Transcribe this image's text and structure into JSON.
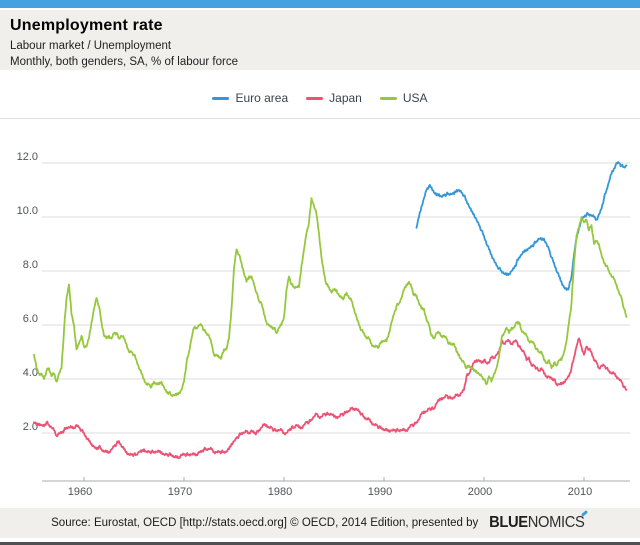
{
  "header": {
    "title": "Unemployment rate",
    "breadcrumb": "Labour market / Unemployment",
    "subtitle": "Monthly, both genders, SA, % of labour force"
  },
  "footer": {
    "source_text": "Source: Eurostat, OECD [http://stats.oecd.org] © OECD, 2014 Edition, presented by",
    "logo_bold": "BLUE",
    "logo_light": "NOMICS"
  },
  "colors": {
    "accent_bar": "#44a3de",
    "panel_bg": "#f0efec",
    "gridline": "#dcdcdc",
    "axis": "#aaacae",
    "tick_text": "#4e5459",
    "euro_area": "#3397d7",
    "japan": "#ec5273",
    "usa": "#96c83e"
  },
  "chart_data": {
    "type": "line",
    "title": "Unemployment rate",
    "xlabel": "",
    "ylabel": "% of labour force",
    "xlim": [
      1955.0,
      2014.25
    ],
    "ylim": [
      0.2,
      13.7
    ],
    "grid": true,
    "legend_position": "top-center",
    "x_ticks": [
      1960,
      1970,
      1980,
      1990,
      2000,
      2010
    ],
    "y_ticks": [
      2,
      4,
      6,
      8,
      10,
      12
    ],
    "y_tick_labels": [
      "2.0",
      "4.0",
      "6.0",
      "8.0",
      "10.0",
      "12.0"
    ],
    "x_unit": "year (monthly data)",
    "series": [
      {
        "name": "Euro area",
        "color": "#3397d7",
        "x_start": 1993.25,
        "x_step": 0.25,
        "values": [
          9.6,
          10.0,
          10.4,
          10.7,
          11.0,
          11.15,
          11.1,
          10.9,
          10.8,
          10.85,
          10.75,
          10.8,
          10.85,
          10.85,
          10.85,
          10.85,
          11.0,
          11.0,
          10.9,
          10.8,
          10.6,
          10.4,
          10.2,
          10.1,
          9.9,
          9.7,
          9.5,
          9.3,
          9.0,
          8.8,
          8.6,
          8.4,
          8.2,
          8.1,
          8.0,
          7.9,
          7.85,
          7.9,
          8.0,
          8.1,
          8.3,
          8.5,
          8.6,
          8.7,
          8.8,
          8.85,
          8.9,
          9.0,
          9.1,
          9.2,
          9.15,
          9.2,
          9.0,
          8.8,
          8.5,
          8.3,
          8.0,
          7.8,
          7.6,
          7.4,
          7.3,
          7.4,
          7.8,
          8.6,
          9.2,
          9.6,
          9.9,
          10.0,
          10.1,
          10.1,
          10.05,
          10.0,
          9.9,
          10.1,
          10.3,
          10.7,
          11.0,
          11.3,
          11.6,
          11.8,
          12.0,
          12.0,
          11.9,
          11.85,
          11.9
        ]
      },
      {
        "name": "Japan",
        "color": "#ec5273",
        "x_start": 1955.0,
        "x_step": 0.25,
        "values": [
          2.4,
          2.3,
          2.35,
          2.3,
          2.25,
          2.4,
          2.3,
          2.2,
          2.1,
          1.9,
          2.0,
          2.0,
          2.1,
          2.2,
          2.2,
          2.2,
          2.2,
          2.3,
          2.2,
          2.1,
          2.0,
          1.8,
          1.7,
          1.6,
          1.5,
          1.4,
          1.5,
          1.4,
          1.3,
          1.3,
          1.3,
          1.4,
          1.5,
          1.6,
          1.7,
          1.5,
          1.4,
          1.3,
          1.2,
          1.2,
          1.2,
          1.2,
          1.3,
          1.3,
          1.4,
          1.3,
          1.3,
          1.3,
          1.3,
          1.3,
          1.3,
          1.3,
          1.2,
          1.2,
          1.2,
          1.2,
          1.1,
          1.1,
          1.1,
          1.2,
          1.2,
          1.2,
          1.2,
          1.2,
          1.2,
          1.2,
          1.3,
          1.3,
          1.4,
          1.4,
          1.4,
          1.4,
          1.3,
          1.3,
          1.3,
          1.3,
          1.3,
          1.3,
          1.4,
          1.6,
          1.7,
          1.8,
          1.9,
          2.0,
          2.0,
          2.05,
          2.0,
          2.1,
          2.0,
          2.0,
          2.1,
          2.2,
          2.3,
          2.3,
          2.2,
          2.2,
          2.1,
          2.1,
          2.1,
          2.1,
          2.0,
          2.0,
          2.1,
          2.2,
          2.2,
          2.3,
          2.2,
          2.2,
          2.3,
          2.4,
          2.4,
          2.5,
          2.6,
          2.7,
          2.6,
          2.6,
          2.7,
          2.7,
          2.7,
          2.7,
          2.6,
          2.6,
          2.6,
          2.7,
          2.7,
          2.8,
          2.8,
          2.9,
          2.9,
          2.9,
          2.8,
          2.7,
          2.6,
          2.5,
          2.5,
          2.4,
          2.3,
          2.3,
          2.2,
          2.2,
          2.1,
          2.1,
          2.1,
          2.1,
          2.1,
          2.1,
          2.1,
          2.1,
          2.1,
          2.1,
          2.2,
          2.3,
          2.3,
          2.4,
          2.5,
          2.7,
          2.8,
          2.8,
          2.9,
          2.9,
          2.9,
          3.1,
          3.2,
          3.3,
          3.3,
          3.4,
          3.3,
          3.3,
          3.3,
          3.4,
          3.4,
          3.5,
          3.6,
          4.1,
          4.2,
          4.4,
          4.6,
          4.7,
          4.7,
          4.6,
          4.7,
          4.6,
          4.6,
          4.8,
          4.8,
          4.9,
          5.0,
          5.4,
          5.3,
          5.4,
          5.4,
          5.3,
          5.4,
          5.4,
          5.2,
          5.1,
          5.0,
          4.7,
          4.8,
          4.5,
          4.5,
          4.4,
          4.3,
          4.4,
          4.2,
          4.1,
          4.1,
          4.0,
          4.0,
          3.8,
          3.8,
          3.8,
          3.9,
          4.0,
          4.1,
          4.4,
          4.8,
          5.2,
          5.5,
          5.2,
          4.9,
          5.2,
          5.1,
          5.0,
          4.7,
          4.6,
          4.4,
          4.5,
          4.5,
          4.4,
          4.3,
          4.2,
          4.2,
          4.1,
          4.0,
          3.9,
          3.7,
          3.6
        ]
      },
      {
        "name": "USA",
        "color": "#96c83e",
        "x_start": 1955.0,
        "x_step": 0.25,
        "values": [
          4.9,
          4.4,
          4.2,
          4.2,
          4.0,
          4.3,
          4.4,
          4.1,
          4.2,
          3.9,
          4.2,
          4.4,
          5.8,
          7.0,
          7.5,
          6.4,
          6.0,
          5.1,
          5.3,
          5.6,
          5.2,
          5.2,
          5.5,
          6.1,
          6.6,
          7.0,
          6.7,
          6.1,
          5.6,
          5.5,
          5.6,
          5.5,
          5.7,
          5.7,
          5.5,
          5.6,
          5.5,
          5.3,
          5.0,
          5.0,
          4.9,
          4.7,
          4.4,
          4.2,
          4.0,
          3.8,
          3.8,
          3.7,
          3.9,
          3.8,
          3.8,
          3.9,
          3.7,
          3.5,
          3.5,
          3.4,
          3.4,
          3.4,
          3.5,
          3.6,
          3.9,
          4.6,
          5.0,
          5.5,
          5.9,
          5.9,
          6.0,
          6.0,
          5.8,
          5.7,
          5.6,
          5.3,
          4.9,
          4.9,
          4.8,
          4.8,
          5.1,
          5.1,
          5.5,
          6.6,
          8.1,
          8.8,
          8.6,
          8.3,
          7.9,
          7.6,
          7.8,
          7.8,
          7.5,
          7.2,
          6.9,
          6.8,
          6.4,
          6.1,
          6.0,
          5.9,
          5.9,
          5.7,
          5.9,
          6.0,
          6.3,
          7.3,
          7.8,
          7.5,
          7.4,
          7.4,
          7.4,
          8.2,
          8.8,
          9.4,
          9.8,
          10.7,
          10.4,
          10.1,
          9.4,
          8.5,
          7.9,
          7.5,
          7.4,
          7.2,
          7.3,
          7.3,
          7.1,
          7.0,
          7.0,
          7.2,
          7.0,
          6.9,
          6.6,
          6.3,
          6.0,
          5.8,
          5.7,
          5.5,
          5.5,
          5.3,
          5.2,
          5.2,
          5.2,
          5.4,
          5.4,
          5.4,
          5.7,
          6.1,
          6.4,
          6.7,
          6.8,
          7.0,
          7.3,
          7.5,
          7.6,
          7.4,
          7.1,
          7.1,
          6.8,
          6.6,
          6.6,
          6.2,
          6.0,
          5.6,
          5.5,
          5.7,
          5.7,
          5.6,
          5.6,
          5.5,
          5.3,
          5.3,
          5.3,
          5.0,
          4.9,
          4.7,
          4.6,
          4.4,
          4.5,
          4.4,
          4.3,
          4.3,
          4.2,
          4.1,
          4.0,
          3.8,
          4.1,
          3.9,
          4.2,
          4.4,
          4.8,
          5.5,
          5.7,
          5.9,
          5.7,
          5.9,
          5.9,
          6.1,
          6.1,
          5.8,
          5.7,
          5.6,
          5.4,
          5.4,
          5.3,
          5.1,
          5.0,
          5.0,
          4.7,
          4.6,
          4.7,
          4.4,
          4.6,
          4.5,
          4.7,
          4.7,
          5.0,
          5.4,
          6.1,
          6.8,
          8.3,
          9.3,
          9.6,
          10.0,
          9.8,
          9.9,
          9.5,
          9.7,
          9.0,
          9.1,
          9.0,
          8.6,
          8.3,
          8.2,
          8.0,
          7.8,
          7.7,
          7.5,
          7.2,
          7.0,
          6.6,
          6.3
        ]
      }
    ]
  }
}
